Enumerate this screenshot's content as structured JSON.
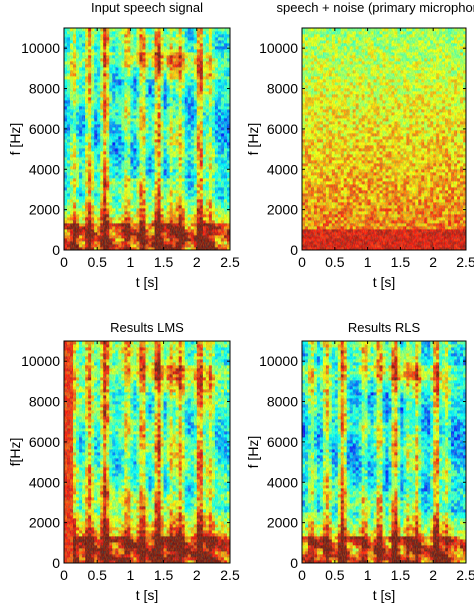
{
  "chart_data": [
    {
      "type": "heatmap",
      "title": "Input speech signal",
      "xlabel": "t [s]",
      "ylabel": "f [Hz]",
      "xlim": [
        0,
        2.5
      ],
      "ylim": [
        0,
        11000
      ],
      "xticks": [
        "0",
        "0.5",
        "1",
        "1.5",
        "2",
        "2.5"
      ],
      "yticks": [
        "0",
        "2000",
        "4000",
        "6000",
        "8000",
        "10000"
      ],
      "colormap": "jet",
      "profile": "speech",
      "grid": false
    },
    {
      "type": "heatmap",
      "title": "speech + noise (primary microphone)",
      "xlabel": "t [s]",
      "ylabel": "f [Hz]",
      "xlim": [
        0,
        2.5
      ],
      "ylim": [
        0,
        11000
      ],
      "xticks": [
        "0",
        "0.5",
        "1",
        "1.5",
        "2",
        "2.5"
      ],
      "yticks": [
        "0",
        "2000",
        "4000",
        "6000",
        "8000",
        "10000"
      ],
      "colormap": "jet",
      "profile": "noisy",
      "grid": false
    },
    {
      "type": "heatmap",
      "title": "Results LMS",
      "xlabel": "t [s]",
      "ylabel": "f[Hz]",
      "xlim": [
        0,
        2.5
      ],
      "ylim": [
        0,
        11000
      ],
      "xticks": [
        "0",
        "0.5",
        "1",
        "1.5",
        "2",
        "2.5"
      ],
      "yticks": [
        "0",
        "2000",
        "4000",
        "6000",
        "8000",
        "10000"
      ],
      "colormap": "jet",
      "profile": "lms",
      "grid": false
    },
    {
      "type": "heatmap",
      "title": "Results RLS",
      "xlabel": "t [s]",
      "ylabel": "f [Hz]",
      "xlim": [
        0,
        2.5
      ],
      "ylim": [
        0,
        11000
      ],
      "xticks": [
        "0",
        "0.5",
        "1",
        "1.5",
        "2",
        "2.5"
      ],
      "yticks": [
        "0",
        "2000",
        "4000",
        "6000",
        "8000",
        "10000"
      ],
      "colormap": "jet",
      "profile": "rls",
      "grid": false
    }
  ]
}
